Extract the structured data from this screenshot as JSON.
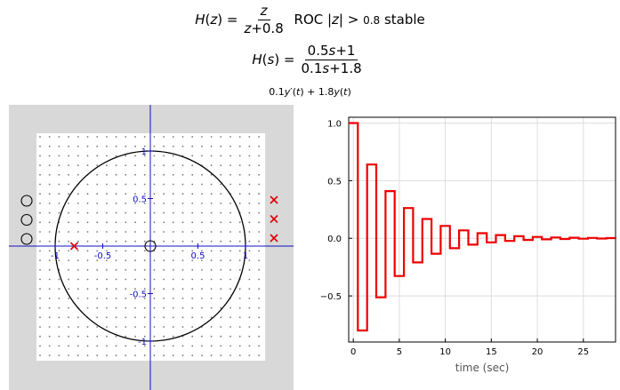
{
  "equations": {
    "hz_lhs": "H(z) =",
    "hz_num": "z",
    "hz_den": "z+0.8",
    "roc_text": "ROC |z| >",
    "roc_value": "0.8",
    "roc_status": "stable",
    "hs_lhs": "H(s) =",
    "hs_num": "0.5 s+1",
    "hs_den": "0.1 s+1.8",
    "ode": "0.1 y′(t) + 1.8 y(t)"
  },
  "colors": {
    "pole": "#e00000",
    "axis": "#1010c0",
    "stem": "#ee0000",
    "panel_bg": "#d8d8d8",
    "grid": "#dddddd"
  },
  "chart_data": [
    {
      "type": "pole-zero",
      "xlim": [
        -1.25,
        1.25
      ],
      "ylim": [
        -1.25,
        1.25
      ],
      "x_ticks": [
        -1,
        -0.5,
        0.5,
        1
      ],
      "x_tick_labels": [
        "-1",
        "-0.5",
        "0.5",
        "1"
      ],
      "y_ticks": [
        1,
        0.5,
        -0.5,
        -1
      ],
      "y_tick_labels": [
        "1",
        "0.5",
        "-0.5",
        "-1"
      ],
      "unit_circle": true,
      "zeros": [
        {
          "re": 0,
          "im": 0
        }
      ],
      "poles": [
        {
          "re": -0.8,
          "im": 0
        }
      ],
      "palette_zero_count": 3,
      "palette_pole_count": 3
    },
    {
      "type": "step",
      "title": "",
      "xlabel": "time (sec)",
      "ylabel": "",
      "xlim": [
        -0.5,
        28.5
      ],
      "ylim": [
        -0.9,
        1.05
      ],
      "x_ticks": [
        0,
        5,
        10,
        15,
        20,
        25
      ],
      "y_ticks": [
        1.0,
        0.5,
        0.0,
        -0.5
      ],
      "y_tick_labels": [
        "1.0",
        "0.5",
        "0.0",
        "−0.5"
      ],
      "grid": true,
      "n": [
        0,
        1,
        2,
        3,
        4,
        5,
        6,
        7,
        8,
        9,
        10,
        11,
        12,
        13,
        14,
        15,
        16,
        17,
        18,
        19,
        20,
        21,
        22,
        23,
        24,
        25,
        26,
        27,
        28
      ],
      "values": [
        1.0,
        -0.8,
        0.64,
        -0.512,
        0.4096,
        -0.32768,
        0.262144,
        -0.209715,
        0.167772,
        -0.134218,
        0.107374,
        -0.085899,
        0.068719,
        -0.054976,
        0.04398,
        -0.035184,
        0.028147,
        -0.022518,
        0.018014,
        -0.014412,
        0.011529,
        -0.009223,
        0.007379,
        -0.005903,
        0.004722,
        -0.003778,
        0.003022,
        -0.002418,
        0.001934
      ]
    }
  ]
}
